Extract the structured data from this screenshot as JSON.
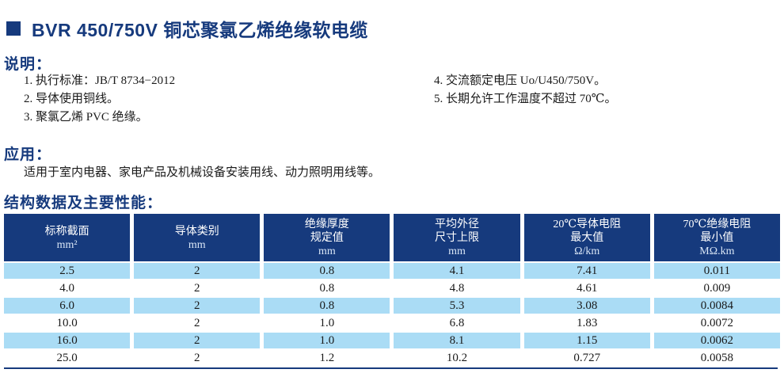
{
  "title": {
    "text": "BVR 450/750V 铜芯聚氯乙烯绝缘软电缆"
  },
  "description": {
    "heading": "说明：",
    "items_left": [
      "1. 执行标准：JB/T 8734−2012",
      "2. 导体使用铜线。",
      "3. 聚氯乙烯 PVC 绝缘。"
    ],
    "items_right": [
      "4. 交流额定电压 Uo/U450/750V。",
      "5. 长期允许工作温度不超过 70℃。"
    ]
  },
  "application": {
    "heading": "应用：",
    "text": "适用于室内电器、家电产品及机械设备安装用线、动力照明用线等。"
  },
  "table_section": {
    "heading": "结构数据及主要性能："
  },
  "table": {
    "headers": [
      {
        "lines": [
          "标称截面",
          "mm²"
        ]
      },
      {
        "lines": [
          "导体类别",
          "mm"
        ]
      },
      {
        "lines": [
          "绝缘厚度",
          "规定值",
          "mm"
        ]
      },
      {
        "lines": [
          "平均外径",
          "尺寸上限",
          "mm"
        ]
      },
      {
        "lines": [
          "20℃导体电阻",
          "最大值",
          "Ω/km"
        ]
      },
      {
        "lines": [
          "70℃绝缘电阻",
          "最小值",
          "MΩ.km"
        ]
      }
    ],
    "rows": [
      [
        "2.5",
        "2",
        "0.8",
        "4.1",
        "7.41",
        "0.011"
      ],
      [
        "4.0",
        "2",
        "0.8",
        "4.8",
        "4.61",
        "0.009"
      ],
      [
        "6.0",
        "2",
        "0.8",
        "5.3",
        "3.08",
        "0.0084"
      ],
      [
        "10.0",
        "2",
        "1.0",
        "6.8",
        "1.83",
        "0.0072"
      ],
      [
        "16.0",
        "2",
        "1.0",
        "8.1",
        "1.15",
        "0.0062"
      ],
      [
        "25.0",
        "2",
        "1.2",
        "10.2",
        "0.727",
        "0.0058"
      ]
    ]
  },
  "colors": {
    "navy": "#163a7d",
    "row_blue": "#aadcf5",
    "text": "#1a1a1a"
  }
}
